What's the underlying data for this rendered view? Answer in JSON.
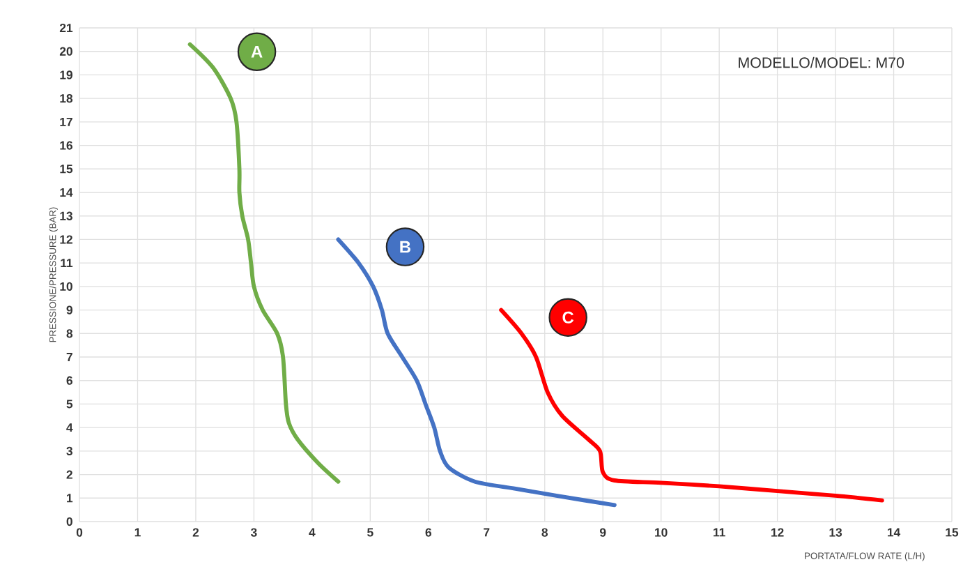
{
  "chart_data": {
    "type": "line",
    "xlabel": "PORTATA/FLOW RATE (L/H)",
    "ylabel": "PRESSIONE/PRESSURE (BAR)",
    "annotations": [
      "MODELLO/MODEL: M70"
    ],
    "xlim": [
      0,
      15
    ],
    "xticks": [
      0,
      1,
      2,
      3,
      4,
      5,
      6,
      7,
      8,
      9,
      10,
      11,
      12,
      13,
      14,
      15
    ],
    "ylim": [
      0,
      21
    ],
    "yticks": [
      0,
      1,
      2,
      3,
      4,
      5,
      6,
      7,
      8,
      9,
      10,
      11,
      12,
      13,
      14,
      15,
      16,
      17,
      18,
      19,
      20,
      21
    ],
    "grid": true,
    "legend": false,
    "marker": "none",
    "line_style": "solid",
    "series": [
      {
        "name": "A",
        "color": "#70ad47",
        "x": [
          1.9,
          2.3,
          2.6,
          2.7,
          2.75,
          2.75,
          2.8,
          2.9,
          2.95,
          3.0,
          3.15,
          3.4,
          3.5,
          3.55,
          3.6,
          3.75,
          4.1,
          4.45
        ],
        "values": [
          20.3,
          19.3,
          18,
          17,
          15,
          14,
          13,
          12,
          11,
          10,
          9,
          8,
          7,
          5,
          4.2,
          3.5,
          2.5,
          1.7
        ]
      },
      {
        "name": "B",
        "color": "#4472c4",
        "x": [
          4.45,
          4.8,
          5.05,
          5.2,
          5.3,
          5.55,
          5.8,
          5.95,
          6.1,
          6.2,
          6.35,
          6.8,
          7.5,
          8.2,
          9.2
        ],
        "values": [
          12,
          11,
          10,
          9,
          8,
          7,
          6,
          5,
          4,
          3,
          2.3,
          1.7,
          1.4,
          1.1,
          0.7
        ]
      },
      {
        "name": "C",
        "color": "#ff0000",
        "x": [
          7.25,
          7.6,
          7.85,
          8.05,
          8.3,
          8.75,
          8.95,
          9.0,
          9.2,
          10,
          11,
          12,
          13,
          13.8
        ],
        "values": [
          9,
          8,
          7,
          5.5,
          4.5,
          3.5,
          3,
          2.1,
          1.75,
          1.65,
          1.5,
          1.3,
          1.1,
          0.9
        ]
      }
    ]
  }
}
